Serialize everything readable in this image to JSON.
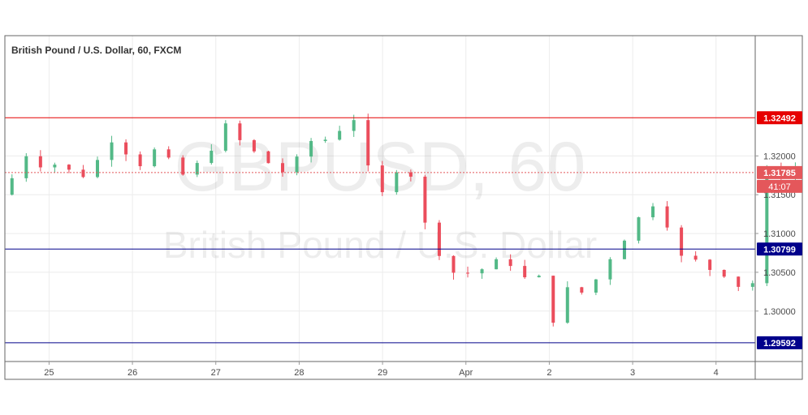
{
  "header": {
    "symbol_title": "British Pound / U.S. Dollar, 60, FXCM"
  },
  "watermark": {
    "ticker": "GBPUSD, 60",
    "name": "British Pound / U.S. Dollar"
  },
  "countdown": "41:07",
  "colors": {
    "up": "#53b987",
    "down": "#eb4d5c",
    "resistance": "#e60000",
    "support": "#00008b",
    "current": "#e4575b",
    "grid": "#ececec",
    "axis_text": "#4a4a4a"
  },
  "chart_data": {
    "type": "candlestick",
    "title": "British Pound / U.S. Dollar, 60, FXCM",
    "x_tick_labels": [
      "25",
      "26",
      "27",
      "28",
      "29",
      "Apr",
      "2",
      "3",
      "4"
    ],
    "y_tick_labels": [
      "1.32000",
      "1.31500",
      "1.31000",
      "1.30500",
      "1.30000"
    ],
    "y_range": [
      1.2935,
      1.3355
    ],
    "x_range_days": [
      -0.53,
      8.47
    ],
    "grid": true,
    "horizontal_lines": [
      {
        "label": "1.32492",
        "value": 1.32492,
        "style": "solid",
        "color_key": "resistance"
      },
      {
        "label": "1.31785",
        "value": 1.31785,
        "style": "dotted",
        "color_key": "current"
      },
      {
        "label": "1.30799",
        "value": 1.30799,
        "style": "solid",
        "color_key": "support"
      },
      {
        "label": "1.29592",
        "value": 1.29592,
        "style": "solid",
        "color_key": "support"
      }
    ],
    "price_path": [
      [
        -0.53,
        1.315
      ],
      [
        -0.35,
        1.3195
      ],
      [
        -0.25,
        1.3205
      ],
      [
        -0.1,
        1.319
      ],
      [
        0.0,
        1.32
      ],
      [
        0.1,
        1.3185
      ],
      [
        0.25,
        1.318
      ],
      [
        0.4,
        1.3175
      ],
      [
        0.55,
        1.319
      ],
      [
        0.7,
        1.321
      ],
      [
        0.8,
        1.3235
      ],
      [
        0.95,
        1.32
      ],
      [
        1.1,
        1.319
      ],
      [
        1.3,
        1.321
      ],
      [
        1.45,
        1.319
      ],
      [
        1.6,
        1.3175
      ],
      [
        1.75,
        1.3185
      ],
      [
        1.9,
        1.32
      ],
      [
        2.0,
        1.3225
      ],
      [
        2.1,
        1.324
      ],
      [
        2.2,
        1.3225
      ],
      [
        2.35,
        1.3215
      ],
      [
        2.5,
        1.32
      ],
      [
        2.65,
        1.319
      ],
      [
        2.8,
        1.318
      ],
      [
        2.95,
        1.319
      ],
      [
        3.1,
        1.3215
      ],
      [
        3.25,
        1.323
      ],
      [
        3.4,
        1.321
      ],
      [
        3.5,
        1.324
      ],
      [
        3.6,
        1.326
      ],
      [
        3.7,
        1.324
      ],
      [
        3.8,
        1.319
      ],
      [
        3.9,
        1.316
      ],
      [
        4.0,
        1.315
      ],
      [
        4.1,
        1.318
      ],
      [
        4.25,
        1.319
      ],
      [
        4.35,
        1.3175
      ],
      [
        4.45,
        1.3135
      ],
      [
        4.55,
        1.3095
      ],
      [
        4.65,
        1.308
      ],
      [
        4.75,
        1.307
      ],
      [
        4.85,
        1.305
      ],
      [
        4.95,
        1.306
      ],
      [
        5.05,
        1.3045
      ],
      [
        5.15,
        1.305
      ],
      [
        5.25,
        1.306
      ],
      [
        5.35,
        1.306
      ],
      [
        5.45,
        1.3075
      ],
      [
        5.55,
        1.306
      ],
      [
        5.6,
        1.303
      ],
      [
        5.65,
        1.301
      ],
      [
        5.72,
        1.305
      ],
      [
        5.78,
        1.309
      ],
      [
        5.85,
        1.306
      ],
      [
        5.95,
        1.299
      ],
      [
        6.05,
        1.299
      ],
      [
        6.15,
        1.302
      ],
      [
        6.25,
        1.303
      ],
      [
        6.35,
        1.302
      ],
      [
        6.45,
        1.303
      ],
      [
        6.55,
        1.304
      ],
      [
        6.65,
        1.305
      ],
      [
        6.75,
        1.3075
      ],
      [
        6.85,
        1.309
      ],
      [
        6.95,
        1.31
      ],
      [
        7.05,
        1.3115
      ],
      [
        7.15,
        1.3135
      ],
      [
        7.25,
        1.314
      ],
      [
        7.35,
        1.312
      ],
      [
        7.45,
        1.311
      ],
      [
        7.5,
        1.306
      ],
      [
        7.6,
        1.307
      ],
      [
        7.7,
        1.306
      ],
      [
        7.85,
        1.307
      ],
      [
        7.95,
        1.305
      ],
      [
        8.05,
        1.304
      ],
      [
        8.15,
        1.306
      ],
      [
        8.25,
        1.303
      ],
      [
        8.35,
        1.305
      ],
      [
        8.45,
        1.3035
      ]
    ],
    "price_path_2": [
      [
        0.0,
        1.3035
      ],
      [
        0.08,
        1.306
      ],
      [
        0.15,
        1.31
      ],
      [
        0.25,
        1.3125
      ],
      [
        0.35,
        1.313
      ],
      [
        0.45,
        1.3128
      ],
      [
        0.55,
        1.3135
      ],
      [
        0.65,
        1.314
      ],
      [
        0.75,
        1.3145
      ],
      [
        0.85,
        1.315
      ],
      [
        0.95,
        1.319
      ],
      [
        1.05,
        1.3185
      ],
      [
        1.15,
        1.3175
      ],
      [
        1.25,
        1.3165
      ],
      [
        1.35,
        1.315
      ],
      [
        1.45,
        1.3145
      ],
      [
        1.55,
        1.317
      ],
      [
        1.65,
        1.3175
      ],
      [
        1.75,
        1.316
      ],
      [
        1.85,
        1.316
      ],
      [
        1.95,
        1.318
      ],
      [
        2.05,
        1.318
      ],
      [
        2.15,
        1.3178
      ],
      [
        2.25,
        1.3175
      ],
      [
        2.35,
        1.318
      ],
      [
        2.45,
        1.3185
      ],
      [
        2.55,
        1.3178
      ]
    ],
    "price_path_2_offset_days": 6.48,
    "last_price": 1.31785
  }
}
